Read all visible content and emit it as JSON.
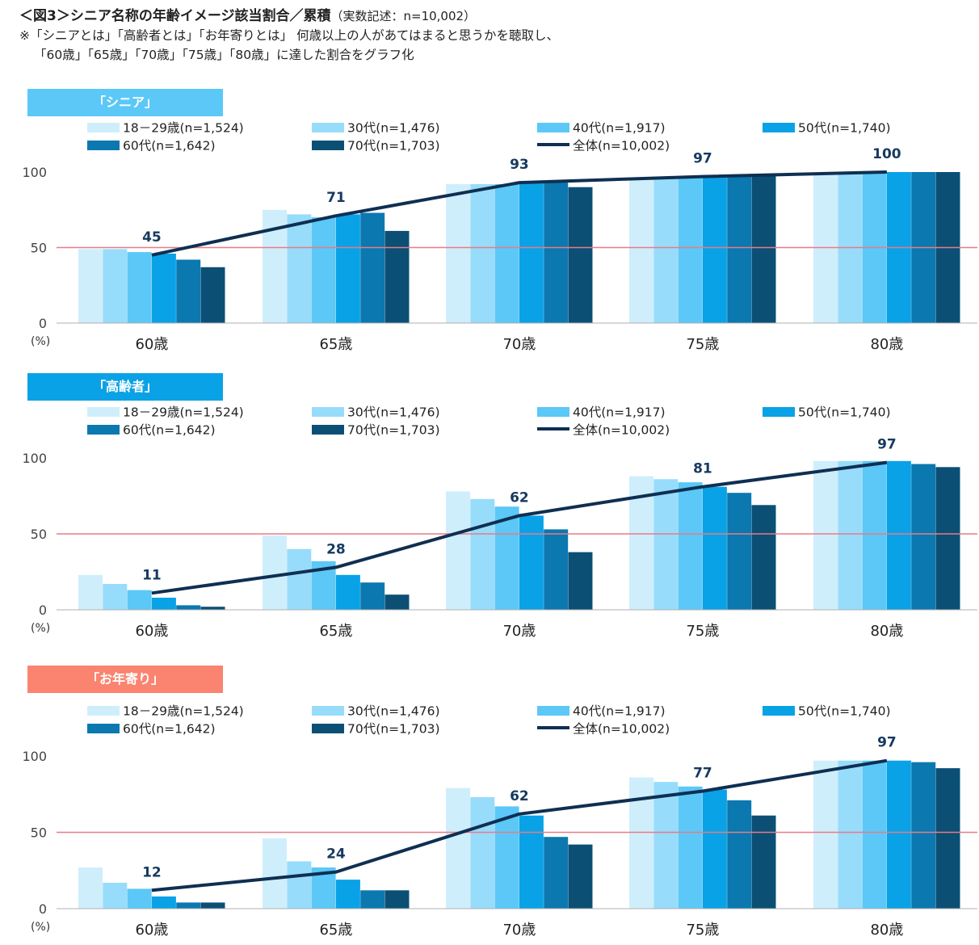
{
  "title": "＜図3＞シニア名称の年齢イメージ該当割合／累積",
  "subtitle": "（実数記述：n=10,002）",
  "note_line1": "※「シニアとは」「高齢者とは」「お年寄りとは」 何歳以上の人があてはまると思うかを聴取し、",
  "note_line2": "「60歳」「65歳」「70歳」「75歳」「80歳」に達した割合をグラフ化",
  "colors": {
    "series": [
      "#cfeefc",
      "#97dcfb",
      "#5bc8f7",
      "#0aa2e6",
      "#0b78b0",
      "#0b4f75"
    ],
    "line": "#0f2f52",
    "reference": "#e97a86",
    "label_senior": "#5bc8f7",
    "label_koureisha": "#0aa2e6",
    "label_otoshiyori": "#fa8470"
  },
  "legend": {
    "series": [
      "18－29歳(n=1,524)",
      "30代(n=1,476)",
      "40代(n=1,917)",
      "50代(n=1,740)",
      "60代(n=1,642)",
      "70代(n=1,703)"
    ],
    "total": "全体(n=10,002)"
  },
  "chart_data": [
    {
      "type": "bar",
      "label": "「シニア」",
      "categories": [
        "60歳",
        "65歳",
        "70歳",
        "75歳",
        "80歳"
      ],
      "ylim": [
        0,
        100
      ],
      "yticks": [
        "0",
        "50",
        "100"
      ],
      "yunit": "(%)",
      "reference_line": 50,
      "series": [
        {
          "name": "18－29歳(n=1,524)",
          "values": [
            49,
            75,
            92,
            95,
            99
          ]
        },
        {
          "name": "30代(n=1,476)",
          "values": [
            49,
            72,
            92,
            96,
            99
          ]
        },
        {
          "name": "40代(n=1,917)",
          "values": [
            47,
            70,
            92,
            97,
            100
          ]
        },
        {
          "name": "50代(n=1,740)",
          "values": [
            46,
            72,
            93,
            98,
            100
          ]
        },
        {
          "name": "60代(n=1,642)",
          "values": [
            42,
            73,
            93,
            98,
            100
          ]
        },
        {
          "name": "70代(n=1,703)",
          "values": [
            37,
            61,
            90,
            98,
            100
          ]
        }
      ],
      "total": {
        "name": "全体(n=10,002)",
        "values": [
          45,
          71,
          93,
          97,
          100
        ],
        "labels": [
          "45",
          "71",
          "93",
          "97",
          "100"
        ]
      }
    },
    {
      "type": "bar",
      "label": "「高齢者」",
      "categories": [
        "60歳",
        "65歳",
        "70歳",
        "75歳",
        "80歳"
      ],
      "ylim": [
        0,
        100
      ],
      "yticks": [
        "0",
        "50",
        "100"
      ],
      "yunit": "(%)",
      "reference_line": 50,
      "series": [
        {
          "name": "18－29歳(n=1,524)",
          "values": [
            23,
            49,
            78,
            88,
            98
          ]
        },
        {
          "name": "30代(n=1,476)",
          "values": [
            17,
            40,
            73,
            86,
            98
          ]
        },
        {
          "name": "40代(n=1,917)",
          "values": [
            13,
            32,
            68,
            84,
            98
          ]
        },
        {
          "name": "50代(n=1,740)",
          "values": [
            8,
            23,
            62,
            81,
            98
          ]
        },
        {
          "name": "60代(n=1,642)",
          "values": [
            3,
            18,
            53,
            77,
            96
          ]
        },
        {
          "name": "70代(n=1,703)",
          "values": [
            2,
            10,
            38,
            69,
            94
          ]
        }
      ],
      "total": {
        "name": "全体(n=10,002)",
        "values": [
          11,
          28,
          62,
          81,
          97
        ],
        "labels": [
          "11",
          "28",
          "62",
          "81",
          "97"
        ]
      }
    },
    {
      "type": "bar",
      "label": "「お年寄り」",
      "categories": [
        "60歳",
        "65歳",
        "70歳",
        "75歳",
        "80歳"
      ],
      "ylim": [
        0,
        100
      ],
      "yticks": [
        "0",
        "50",
        "100"
      ],
      "yunit": "(%)",
      "reference_line": 50,
      "series": [
        {
          "name": "18－29歳(n=1,524)",
          "values": [
            27,
            46,
            79,
            86,
            97
          ]
        },
        {
          "name": "30代(n=1,476)",
          "values": [
            17,
            31,
            73,
            83,
            97
          ]
        },
        {
          "name": "40代(n=1,917)",
          "values": [
            13,
            27,
            67,
            80,
            97
          ]
        },
        {
          "name": "50代(n=1,740)",
          "values": [
            8,
            19,
            61,
            78,
            97
          ]
        },
        {
          "name": "60代(n=1,642)",
          "values": [
            4,
            12,
            47,
            71,
            96
          ]
        },
        {
          "name": "70代(n=1,703)",
          "values": [
            4,
            12,
            42,
            61,
            92
          ]
        }
      ],
      "total": {
        "name": "全体(n=10,002)",
        "values": [
          12,
          24,
          62,
          77,
          97
        ],
        "labels": [
          "12",
          "24",
          "62",
          "77",
          "97"
        ]
      }
    }
  ]
}
